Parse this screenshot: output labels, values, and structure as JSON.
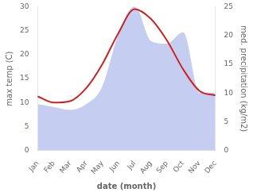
{
  "chart_data": {
    "type": "line",
    "categories": [
      "Jan",
      "Feb",
      "Mar",
      "Apr",
      "May",
      "Jun",
      "Jul",
      "Aug",
      "Sep",
      "Oct",
      "Nov",
      "Dec"
    ],
    "xlabel": "date (month)",
    "ylabel": "max temp (C)",
    "y2label": "med. precipitation (kg/m2)",
    "ylim": [
      0,
      30
    ],
    "yticks": [
      0,
      5,
      10,
      15,
      20,
      25,
      30
    ],
    "y2lim": [
      0,
      25
    ],
    "y2ticks": [
      0,
      5,
      10,
      15,
      20,
      25
    ],
    "grid": false,
    "series": [
      {
        "type": "area",
        "axis": "y2",
        "color": "#c5cef0",
        "values": [
          8.0,
          7.5,
          7.0,
          8.0,
          11.0,
          20.0,
          25.0,
          19.0,
          18.5,
          20.5,
          10.0,
          10.0
        ]
      },
      {
        "type": "line",
        "color": "#cc2222",
        "values": [
          11.3,
          10.0,
          10.3,
          13.0,
          18.0,
          24.5,
          29.5,
          27.5,
          23.0,
          17.0,
          12.5,
          11.5
        ]
      }
    ]
  }
}
